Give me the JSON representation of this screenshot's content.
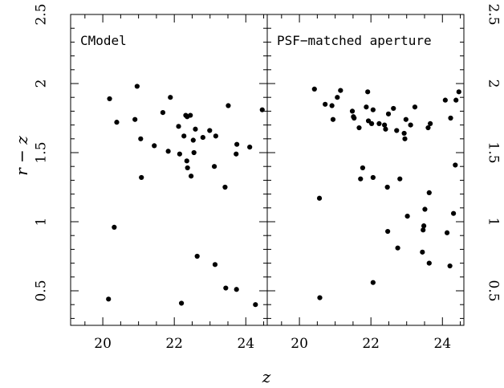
{
  "chart_data": [
    {
      "type": "scatter",
      "title": "CModel",
      "xlabel": "z",
      "ylabel": "r − z",
      "xlim": [
        19.1,
        24.6
      ],
      "ylim": [
        0.25,
        2.5
      ],
      "xticks": [
        20,
        22,
        24
      ],
      "yticks": [
        0.5,
        1,
        1.5,
        2,
        2.5
      ],
      "ytick_labels": [
        "0.5",
        "1",
        "1.5",
        "2",
        "2.5"
      ],
      "points": [
        [
          20.19,
          1.89
        ],
        [
          20.39,
          1.72
        ],
        [
          20.9,
          1.74
        ],
        [
          20.96,
          1.98
        ],
        [
          21.06,
          1.6
        ],
        [
          21.08,
          1.32
        ],
        [
          21.44,
          1.55
        ],
        [
          21.68,
          1.79
        ],
        [
          21.83,
          1.51
        ],
        [
          21.89,
          1.9
        ],
        [
          22.12,
          1.69
        ],
        [
          22.15,
          1.49
        ],
        [
          22.27,
          1.62
        ],
        [
          22.32,
          1.77
        ],
        [
          22.35,
          1.44
        ],
        [
          22.36,
          1.76
        ],
        [
          22.37,
          1.39
        ],
        [
          22.45,
          1.77
        ],
        [
          22.47,
          1.33
        ],
        [
          22.53,
          1.59
        ],
        [
          22.55,
          1.5
        ],
        [
          22.59,
          1.67
        ],
        [
          22.8,
          1.61
        ],
        [
          22.99,
          1.66
        ],
        [
          23.12,
          1.4
        ],
        [
          23.16,
          1.62
        ],
        [
          23.42,
          1.25
        ],
        [
          23.51,
          1.84
        ],
        [
          23.73,
          1.49
        ],
        [
          23.75,
          1.56
        ],
        [
          24.11,
          1.54
        ],
        [
          24.46,
          1.81
        ],
        [
          20.16,
          0.44
        ],
        [
          20.32,
          0.96
        ],
        [
          22.2,
          0.41
        ],
        [
          22.64,
          0.75
        ],
        [
          23.14,
          0.69
        ],
        [
          23.44,
          0.52
        ],
        [
          23.74,
          0.51
        ],
        [
          24.27,
          0.4
        ]
      ]
    },
    {
      "type": "scatter",
      "title": "PSF−matched aperture",
      "xlabel": "z",
      "ylabel": "r − z",
      "xlim": [
        19.1,
        24.6
      ],
      "ylim": [
        0.25,
        2.5
      ],
      "xticks": [
        20,
        22,
        24
      ],
      "yticks": [
        0.5,
        1,
        1.5,
        2,
        2.5
      ],
      "ytick_labels": [
        "0.5",
        "1",
        "1.5",
        "2",
        "2.5"
      ],
      "points": [
        [
          20.42,
          1.96
        ],
        [
          20.72,
          1.85
        ],
        [
          20.91,
          1.84
        ],
        [
          20.94,
          1.74
        ],
        [
          21.06,
          1.9
        ],
        [
          21.15,
          1.95
        ],
        [
          21.48,
          1.8
        ],
        [
          21.51,
          1.76
        ],
        [
          21.53,
          1.75
        ],
        [
          21.67,
          1.68
        ],
        [
          21.87,
          1.83
        ],
        [
          21.91,
          1.94
        ],
        [
          21.93,
          1.73
        ],
        [
          22.02,
          1.71
        ],
        [
          22.06,
          1.81
        ],
        [
          22.23,
          1.71
        ],
        [
          22.38,
          1.7
        ],
        [
          22.41,
          1.67
        ],
        [
          22.49,
          1.78
        ],
        [
          22.63,
          1.82
        ],
        [
          22.72,
          1.66
        ],
        [
          22.93,
          1.64
        ],
        [
          22.95,
          1.6
        ],
        [
          22.98,
          1.74
        ],
        [
          23.11,
          1.7
        ],
        [
          23.23,
          1.83
        ],
        [
          23.6,
          1.68
        ],
        [
          23.66,
          1.71
        ],
        [
          24.08,
          1.88
        ],
        [
          24.23,
          1.75
        ],
        [
          24.38,
          1.88
        ],
        [
          24.46,
          1.94
        ],
        [
          24.36,
          1.41
        ],
        [
          21.71,
          1.31
        ],
        [
          21.77,
          1.39
        ],
        [
          22.06,
          1.32
        ],
        [
          22.46,
          1.25
        ],
        [
          22.81,
          1.31
        ],
        [
          20.56,
          1.17
        ],
        [
          23.63,
          1.21
        ],
        [
          23.02,
          1.04
        ],
        [
          23.51,
          1.09
        ],
        [
          24.31,
          1.06
        ],
        [
          22.47,
          0.93
        ],
        [
          23.46,
          0.94
        ],
        [
          23.48,
          0.97
        ],
        [
          24.13,
          0.92
        ],
        [
          22.75,
          0.81
        ],
        [
          23.44,
          0.78
        ],
        [
          23.63,
          0.7
        ],
        [
          24.21,
          0.68
        ],
        [
          22.06,
          0.56
        ],
        [
          20.57,
          0.45
        ]
      ]
    }
  ]
}
